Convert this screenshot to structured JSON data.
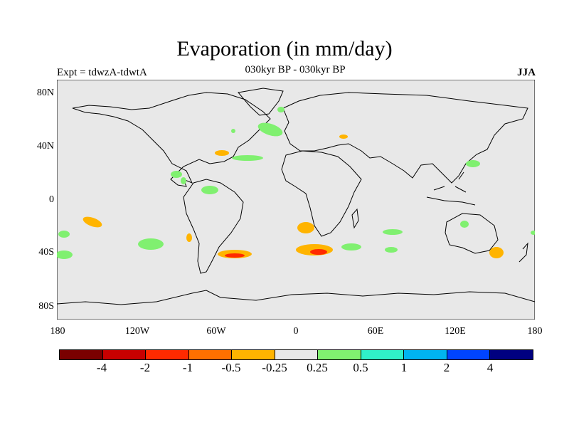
{
  "title": "Evaporation (in mm/day)",
  "subtitle": "030kyr BP - 030kyr BP",
  "experiment_label": "Expt = tdwzA-tdwtA",
  "season_label": "JJA",
  "map": {
    "background_color": "#e8e8e8",
    "latitude_labels": [
      "80N",
      "40N",
      "0",
      "40S",
      "80S"
    ],
    "longitude_labels": [
      "180",
      "120W",
      "60W",
      "0",
      "60E",
      "120E",
      "180"
    ]
  },
  "colorbar": {
    "colors": [
      "#7a0000",
      "#c80000",
      "#ff2a00",
      "#ff7000",
      "#ffb400",
      "#e8e8e8",
      "#80f070",
      "#30f0c8",
      "#00b4f0",
      "#0044ff",
      "#000080"
    ],
    "labels": [
      "-4",
      "-2",
      "-1",
      "-0.5",
      "-0.25",
      "0.25",
      "0.5",
      "1",
      "2",
      "4"
    ]
  }
}
